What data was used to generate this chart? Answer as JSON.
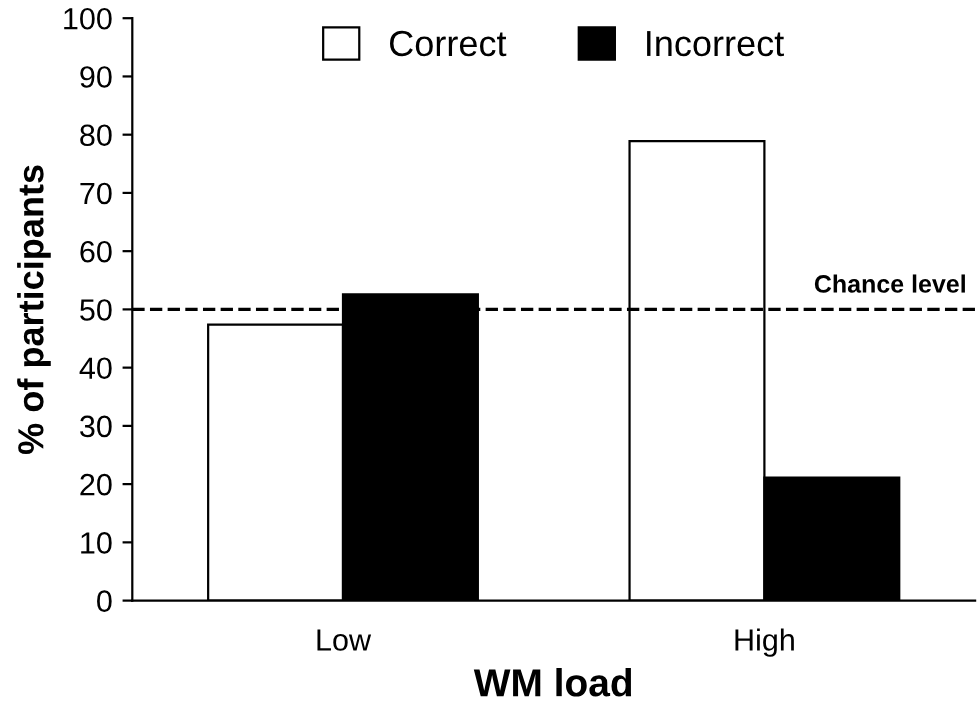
{
  "chart_data": {
    "type": "bar",
    "xlabel": "WM load",
    "ylabel": "% of participants",
    "categories": [
      "Low",
      "High"
    ],
    "series": [
      {
        "name": "Correct",
        "color": "#ffffff",
        "values": [
          47.4,
          78.9
        ]
      },
      {
        "name": "Incorrect",
        "color": "#000000",
        "values": [
          52.6,
          21.1
        ]
      }
    ],
    "ylim": [
      0,
      100
    ],
    "yticks": [
      0,
      10,
      20,
      30,
      40,
      50,
      60,
      70,
      80,
      90,
      100
    ],
    "grid": false,
    "legend": "top",
    "ref_lines": [
      {
        "axis": "y",
        "value": 50,
        "label": "Chance level",
        "color": "#000000",
        "line_style": "dashed"
      }
    ]
  }
}
